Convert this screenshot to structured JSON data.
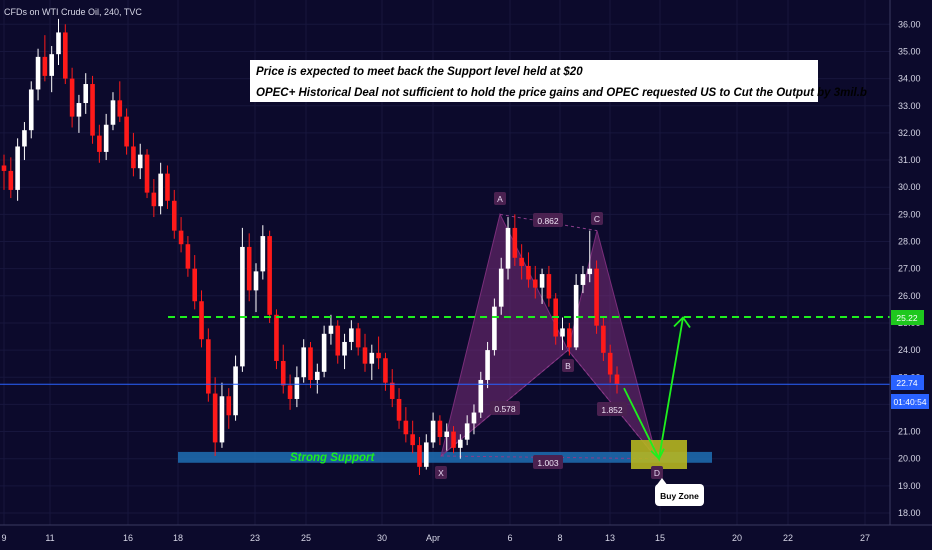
{
  "header": {
    "symbol_title": "CFDs on WTI Crude Oil, 240, TVC"
  },
  "annotations": {
    "note_line_1": "Price is expected to meet back the Support level held at $20",
    "note_line_2": "OPEC+ Historical Deal not sufficient to hold the price gains and OPEC requested US to Cut the Output by 3mil.b",
    "support_label": "Strong Support",
    "buy_zone_label": "Buy Zone"
  },
  "price_badges": {
    "resistance": "25.22",
    "last_price": "22.74",
    "countdown": "01:40:54"
  },
  "colors": {
    "background": "#0c0a2c",
    "up_candle": "#ffffff",
    "down_candle": "#ff1a1a",
    "resistance_line": "#1ef01e",
    "support_zone": "#1f6eb4",
    "pattern_fill": "#7a2d7a",
    "buy_zone": "#b5b520",
    "price_line": "#2962ff"
  },
  "chart_data": {
    "type": "candlestick",
    "title": "CFDs on WTI Crude Oil, 240, TVC",
    "xlabel": "",
    "ylabel": "",
    "ylim": [
      17.6,
      36.6
    ],
    "y_ticks": [
      "18.00",
      "19.00",
      "20.00",
      "21.00",
      "22.00",
      "23.00",
      "24.00",
      "25.00",
      "26.00",
      "27.00",
      "28.00",
      "29.00",
      "30.00",
      "31.00",
      "32.00",
      "33.00",
      "34.00",
      "35.00",
      "36.00"
    ],
    "x_ticks": [
      "9",
      "11",
      "16",
      "18",
      "23",
      "25",
      "30",
      "Apr",
      "6",
      "8",
      "13",
      "15",
      "20",
      "22",
      "27"
    ],
    "price_levels": {
      "resistance": 25.22,
      "last_price": 22.74,
      "support_zone": [
        19.85,
        20.25
      ]
    },
    "harmonic_pattern": {
      "points": [
        {
          "label": "X",
          "date": "Apr 1",
          "price": 20.1
        },
        {
          "label": "A",
          "date": "Apr 6",
          "price": 29.0
        },
        {
          "label": "B",
          "date": "Apr 8",
          "price": 24.0
        },
        {
          "label": "C",
          "date": "Apr 9",
          "price": 28.4
        },
        {
          "label": "D",
          "date": "Apr 14",
          "price": 20.0
        }
      ],
      "ratios": [
        {
          "label": "0.862",
          "between": "A-C"
        },
        {
          "label": "0.578",
          "between": "X-B"
        },
        {
          "label": "1.852",
          "between": "B-D"
        },
        {
          "label": "1.003",
          "between": "X-D"
        }
      ]
    },
    "projection": {
      "from": 22.6,
      "to_low": 20.0,
      "to_high": 25.2
    },
    "candles": [
      [
        30.8,
        31.2,
        29.9,
        30.6
      ],
      [
        30.6,
        31.1,
        29.6,
        29.9
      ],
      [
        29.9,
        31.8,
        29.5,
        31.5
      ],
      [
        31.5,
        32.4,
        31.0,
        32.1
      ],
      [
        32.1,
        33.9,
        31.8,
        33.6
      ],
      [
        33.6,
        35.1,
        33.2,
        34.8
      ],
      [
        34.8,
        35.6,
        33.9,
        34.1
      ],
      [
        34.1,
        35.2,
        33.5,
        34.9
      ],
      [
        34.9,
        36.2,
        34.5,
        35.7
      ],
      [
        35.7,
        36.0,
        33.8,
        34.0
      ],
      [
        34.0,
        34.4,
        32.2,
        32.6
      ],
      [
        32.6,
        33.4,
        32.0,
        33.1
      ],
      [
        33.1,
        34.2,
        32.7,
        33.8
      ],
      [
        33.8,
        34.1,
        31.6,
        31.9
      ],
      [
        31.9,
        32.3,
        30.9,
        31.3
      ],
      [
        31.3,
        32.7,
        31.0,
        32.3
      ],
      [
        32.3,
        33.5,
        32.1,
        33.2
      ],
      [
        33.2,
        33.9,
        32.4,
        32.6
      ],
      [
        32.6,
        32.9,
        31.2,
        31.5
      ],
      [
        31.5,
        32.0,
        30.4,
        30.7
      ],
      [
        30.7,
        31.6,
        30.3,
        31.2
      ],
      [
        31.2,
        31.4,
        29.6,
        29.8
      ],
      [
        29.8,
        30.3,
        28.9,
        29.3
      ],
      [
        29.3,
        30.9,
        29.0,
        30.5
      ],
      [
        30.5,
        30.8,
        29.2,
        29.5
      ],
      [
        29.5,
        29.9,
        28.1,
        28.4
      ],
      [
        28.4,
        28.9,
        27.6,
        27.9
      ],
      [
        27.9,
        28.2,
        26.7,
        27.0
      ],
      [
        27.0,
        27.5,
        25.5,
        25.8
      ],
      [
        25.8,
        26.2,
        24.1,
        24.4
      ],
      [
        24.4,
        24.8,
        22.1,
        22.4
      ],
      [
        22.4,
        23.0,
        20.1,
        20.6
      ],
      [
        20.6,
        22.8,
        20.4,
        22.3
      ],
      [
        22.3,
        22.6,
        21.1,
        21.6
      ],
      [
        21.6,
        23.8,
        21.4,
        23.4
      ],
      [
        23.4,
        28.5,
        23.2,
        27.8
      ],
      [
        27.8,
        28.3,
        25.8,
        26.2
      ],
      [
        26.2,
        27.2,
        25.4,
        26.9
      ],
      [
        26.9,
        28.6,
        26.6,
        28.2
      ],
      [
        28.2,
        28.4,
        25.0,
        25.3
      ],
      [
        25.3,
        25.5,
        23.3,
        23.6
      ],
      [
        23.6,
        24.2,
        22.4,
        22.7
      ],
      [
        22.7,
        23.1,
        21.8,
        22.2
      ],
      [
        22.2,
        23.4,
        21.9,
        23.0
      ],
      [
        23.0,
        24.4,
        22.8,
        24.1
      ],
      [
        24.1,
        24.3,
        22.6,
        22.9
      ],
      [
        22.9,
        23.5,
        22.4,
        23.2
      ],
      [
        23.2,
        24.9,
        23.0,
        24.6
      ],
      [
        24.6,
        25.3,
        24.2,
        24.9
      ],
      [
        24.9,
        25.1,
        23.5,
        23.8
      ],
      [
        23.8,
        24.6,
        23.3,
        24.3
      ],
      [
        24.3,
        25.1,
        24.0,
        24.8
      ],
      [
        24.8,
        25.0,
        23.8,
        24.1
      ],
      [
        24.1,
        24.6,
        23.2,
        23.5
      ],
      [
        23.5,
        24.2,
        22.9,
        23.9
      ],
      [
        23.9,
        24.5,
        23.3,
        23.7
      ],
      [
        23.7,
        23.9,
        22.5,
        22.8
      ],
      [
        22.8,
        23.3,
        21.9,
        22.2
      ],
      [
        22.2,
        22.6,
        21.1,
        21.4
      ],
      [
        21.4,
        21.9,
        20.6,
        20.9
      ],
      [
        20.9,
        21.4,
        20.2,
        20.5
      ],
      [
        20.5,
        20.8,
        19.4,
        19.7
      ],
      [
        19.7,
        20.9,
        19.6,
        20.6
      ],
      [
        20.6,
        21.7,
        20.4,
        21.4
      ],
      [
        21.4,
        21.6,
        20.5,
        20.8
      ],
      [
        20.8,
        21.3,
        20.3,
        21.0
      ],
      [
        21.0,
        21.2,
        20.2,
        20.4
      ],
      [
        20.4,
        20.9,
        20.0,
        20.7
      ],
      [
        20.7,
        21.6,
        20.5,
        21.3
      ],
      [
        21.3,
        22.0,
        20.9,
        21.7
      ],
      [
        21.7,
        23.2,
        21.5,
        22.9
      ],
      [
        22.9,
        24.3,
        22.6,
        24.0
      ],
      [
        24.0,
        25.9,
        23.8,
        25.6
      ],
      [
        25.6,
        27.4,
        25.3,
        27.0
      ],
      [
        27.0,
        28.9,
        26.6,
        28.5
      ],
      [
        28.5,
        29.0,
        27.1,
        27.4
      ],
      [
        27.4,
        27.9,
        26.6,
        27.1
      ],
      [
        27.1,
        27.6,
        26.3,
        26.6
      ],
      [
        26.6,
        27.1,
        25.9,
        26.3
      ],
      [
        26.3,
        27.0,
        25.7,
        26.8
      ],
      [
        26.8,
        27.1,
        25.6,
        25.9
      ],
      [
        25.9,
        26.1,
        24.2,
        24.5
      ],
      [
        24.5,
        25.2,
        24.0,
        24.8
      ],
      [
        24.8,
        25.0,
        23.8,
        24.1
      ],
      [
        24.1,
        26.8,
        24.0,
        26.4
      ],
      [
        26.4,
        27.1,
        26.1,
        26.8
      ],
      [
        26.8,
        28.4,
        26.5,
        27.0
      ],
      [
        27.0,
        27.3,
        24.6,
        24.9
      ],
      [
        24.9,
        25.2,
        23.6,
        23.9
      ],
      [
        23.9,
        24.2,
        22.8,
        23.1
      ],
      [
        23.1,
        23.4,
        22.4,
        22.74
      ]
    ]
  }
}
